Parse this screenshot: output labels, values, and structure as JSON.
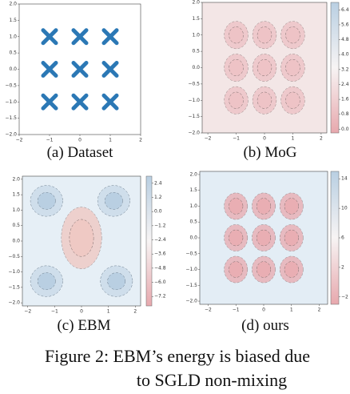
{
  "chart_data": [
    {
      "type": "scatter",
      "caption": "(a) Dataset",
      "color": "#2b78b5",
      "x": [
        -1,
        0,
        1,
        -1,
        0,
        1,
        -1,
        0,
        1
      ],
      "y": [
        1,
        1,
        1,
        0,
        0,
        0,
        -1,
        -1,
        -1
      ],
      "xlim": [
        -2,
        2
      ],
      "ylim": [
        -2,
        2
      ],
      "xticks": [
        {
          "value": -2,
          "label": "−2"
        },
        {
          "value": -1,
          "label": "−1"
        },
        0,
        1,
        2
      ],
      "yticks": [
        {
          "value": 2,
          "label": "2.0"
        },
        1.5,
        {
          "value": 1,
          "label": "1.0"
        },
        0.5,
        {
          "value": 0,
          "label": "0.0"
        },
        {
          "value": -0.5,
          "label": "−0.5"
        },
        {
          "value": -1,
          "label": "−1.0"
        },
        {
          "value": -1.5,
          "label": "−1.5"
        },
        {
          "value": -2,
          "label": "−2.0"
        }
      ]
    },
    {
      "type": "contour",
      "caption": "(b) MoG",
      "background": "#f3e6e6",
      "color": "#eec3c6",
      "x": [
        -1,
        0,
        1,
        -1,
        0,
        1,
        -1,
        0,
        1
      ],
      "y": [
        1,
        1,
        1,
        0,
        0,
        0,
        -1,
        -1,
        -1
      ],
      "xlim": [
        -2.2,
        2.2
      ],
      "ylim": [
        -2,
        2
      ],
      "xticks": [
        {
          "value": -2,
          "label": "−2"
        },
        {
          "value": -1,
          "label": "−1"
        },
        0,
        1,
        2
      ],
      "yticks": [
        {
          "value": 2,
          "label": "2.0"
        },
        1.5,
        {
          "value": 1,
          "label": "1.0"
        },
        0.5,
        {
          "value": 0,
          "label": "0.0"
        },
        {
          "value": -0.5,
          "label": "−0.5"
        },
        {
          "value": -1,
          "label": "−1.0"
        },
        {
          "value": -1.5,
          "label": "−1.5"
        },
        {
          "value": -2,
          "label": "−2.0"
        }
      ],
      "colorbar": {
        "lim": [
          -0.2,
          6.8
        ],
        "ticks": [
          6.4,
          5.6,
          4.8,
          {
            "value": 4,
            "label": "4.0"
          },
          3.2,
          2.4,
          1.6,
          0.8,
          {
            "value": 0,
            "label": "0.0"
          }
        ]
      }
    },
    {
      "type": "contour",
      "caption": "(c) EBM",
      "background": "#e6eff6",
      "color": "#efc9c4",
      "x": [
        0
      ],
      "y": [
        0.1
      ],
      "xlim": [
        -2.2,
        2.2
      ],
      "ylim": [
        -2.1,
        2.1
      ],
      "xticks": [
        {
          "value": -2,
          "label": "−2"
        },
        {
          "value": -1,
          "label": "−1"
        },
        0,
        1,
        2
      ],
      "yticks": [
        {
          "value": 2,
          "label": "2.0"
        },
        1.5,
        {
          "value": 1,
          "label": "1.0"
        },
        0.5,
        {
          "value": 0,
          "label": "0.0"
        },
        {
          "value": -0.5,
          "label": "−0.5"
        },
        {
          "value": -1,
          "label": "−1.0"
        },
        {
          "value": -1.5,
          "label": "−1.5"
        },
        {
          "value": -2,
          "label": "−2.0"
        }
      ],
      "colorbar": {
        "lim": [
          -8,
          3
        ],
        "ticks": [
          2.4,
          1.2,
          {
            "value": 0,
            "label": "0.0"
          },
          {
            "value": -1.2,
            "label": "−1.2"
          },
          {
            "value": -2.4,
            "label": "−2.4"
          },
          {
            "value": -3.6,
            "label": "−3.6"
          },
          {
            "value": -4.8,
            "label": "−4.8"
          },
          {
            "value": -6,
            "label": "−6.0"
          },
          {
            "value": -7.2,
            "label": "−7.2"
          }
        ]
      }
    },
    {
      "type": "contour",
      "caption": "(d) ours",
      "background": "#e3edf5",
      "color": "#e9aeb3",
      "x": [
        -1,
        0,
        1,
        -1,
        0,
        1,
        -1,
        0,
        1
      ],
      "y": [
        1,
        1,
        1,
        0,
        0,
        0,
        -1,
        -1,
        -1
      ],
      "xlim": [
        -2.3,
        2.3
      ],
      "ylim": [
        -2.1,
        2.1
      ],
      "xticks": [
        {
          "value": -2,
          "label": "−2"
        },
        {
          "value": -1,
          "label": "−1"
        },
        0,
        1,
        2
      ],
      "yticks": [
        {
          "value": 2,
          "label": "2.0"
        },
        1.5,
        {
          "value": 1,
          "label": "1.0"
        },
        0.5,
        {
          "value": 0,
          "label": "0.0"
        },
        {
          "value": -0.5,
          "label": "−0.5"
        },
        {
          "value": -1,
          "label": "−1.0"
        },
        {
          "value": -1.5,
          "label": "−1.5"
        },
        {
          "value": -2,
          "label": "−2.0"
        }
      ],
      "colorbar": {
        "lim": [
          -3,
          15
        ],
        "ticks": [
          14,
          10,
          6,
          2,
          {
            "value": -2,
            "label": "−2"
          }
        ]
      }
    }
  ],
  "caption": {
    "line1": "Figure 2: EBM’s energy is biased due",
    "line2": "to SGLD non-mixing"
  }
}
